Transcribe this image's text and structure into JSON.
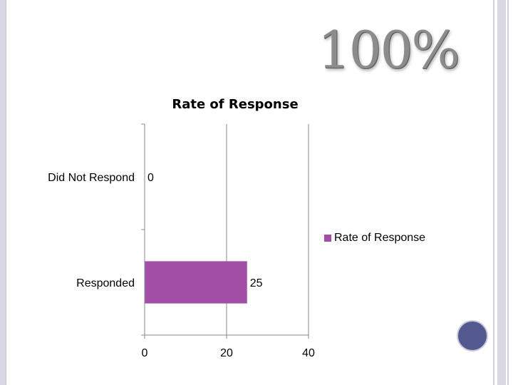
{
  "slide": {
    "logo_text": "100%",
    "colors": {
      "bar": "#a24ea6",
      "accent_circle": "#53588f"
    }
  },
  "chart_data": {
    "type": "bar",
    "orientation": "horizontal",
    "title": "Rate of Response",
    "categories": [
      "Did Not Respond",
      "Responded"
    ],
    "series": [
      {
        "name": "Rate of Response",
        "values": [
          0,
          25
        ]
      }
    ],
    "xlim": [
      0,
      40
    ],
    "xticks": [
      0,
      20,
      40
    ],
    "grid": true,
    "legend": "right",
    "data_labels": true
  }
}
